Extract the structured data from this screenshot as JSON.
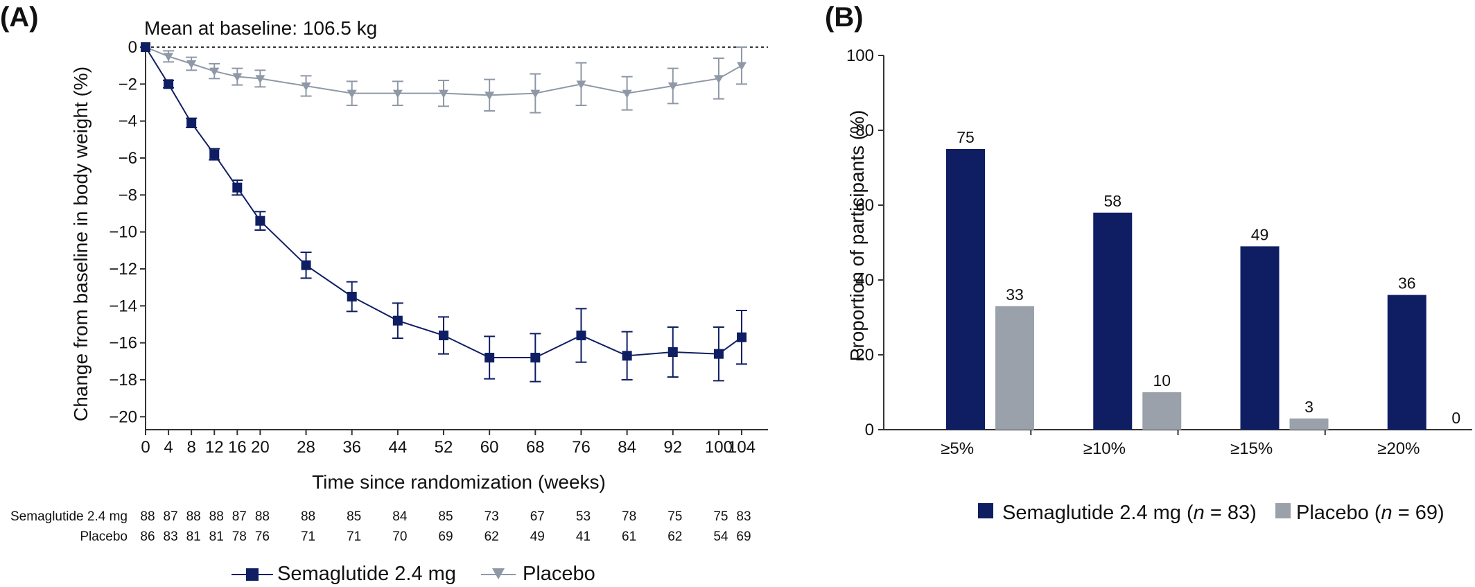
{
  "colors": {
    "semaglutide": "#0f1e63",
    "placebo": "#8f98a6",
    "placebo_bar": "#9aa1ab",
    "axis": "#333333"
  },
  "panel_a": {
    "label": "(A)",
    "annotation": "Mean at baseline: 106.5 kg",
    "legend": {
      "semaglutide": "Semaglutide 2.4 mg",
      "placebo": "Placebo"
    },
    "risk_table": {
      "rows": [
        {
          "label": "Semaglutide 2.4 mg",
          "values": [
            "88",
            "87",
            "88",
            "88",
            "87",
            "88",
            "88",
            "85",
            "84",
            "85",
            "73",
            "67",
            "53",
            "78",
            "75",
            "75",
            "83"
          ]
        },
        {
          "label": "Placebo",
          "values": [
            "86",
            "83",
            "81",
            "81",
            "78",
            "76",
            "71",
            "71",
            "70",
            "69",
            "62",
            "49",
            "41",
            "61",
            "62",
            "54",
            "69"
          ]
        }
      ]
    }
  },
  "panel_b": {
    "label": "(B)",
    "legend": {
      "semaglutide": "Semaglutide 2.4 mg (",
      "n_italic": "n",
      "semaglutide_n": " = 83)",
      "placebo": "Placebo (",
      "placebo_n": " = 69)"
    }
  },
  "chart_data": [
    {
      "type": "line",
      "title": "",
      "xlabel": "Time since randomization (weeks)",
      "ylabel": "Change from baseline in body weight (%)",
      "x": [
        0,
        4,
        8,
        12,
        16,
        20,
        28,
        36,
        44,
        52,
        60,
        68,
        76,
        84,
        92,
        100,
        104
      ],
      "xticks": [
        0,
        4,
        8,
        12,
        16,
        20,
        28,
        36,
        44,
        52,
        60,
        68,
        76,
        84,
        92,
        100,
        104
      ],
      "yticks": [
        0,
        -2,
        -4,
        -6,
        -8,
        -10,
        -12,
        -14,
        -16,
        -18,
        -20
      ],
      "xlim": [
        0,
        104
      ],
      "ylim": [
        -20.7,
        0.3
      ],
      "reference_line_y": 0,
      "series": [
        {
          "name": "Semaglutide 2.4 mg",
          "marker": "square",
          "values": [
            0,
            -2.0,
            -4.1,
            -5.8,
            -7.6,
            -9.4,
            -11.8,
            -13.5,
            -14.8,
            -15.6,
            -16.8,
            -16.8,
            -15.6,
            -16.7,
            -16.5,
            -16.6,
            -15.7
          ],
          "error": [
            0.15,
            0.2,
            0.25,
            0.3,
            0.4,
            0.5,
            0.7,
            0.8,
            0.95,
            1.0,
            1.15,
            1.3,
            1.45,
            1.3,
            1.35,
            1.45,
            1.45
          ]
        },
        {
          "name": "Placebo",
          "marker": "triangle-down",
          "values": [
            0,
            -0.5,
            -0.9,
            -1.3,
            -1.6,
            -1.7,
            -2.1,
            -2.5,
            -2.5,
            -2.5,
            -2.6,
            -2.5,
            -2.0,
            -2.5,
            -2.1,
            -1.7,
            -1.0
          ],
          "error": [
            0.15,
            0.3,
            0.35,
            0.4,
            0.45,
            0.45,
            0.55,
            0.65,
            0.65,
            0.7,
            0.85,
            1.05,
            1.15,
            0.9,
            0.95,
            1.1,
            1.0
          ]
        }
      ]
    },
    {
      "type": "bar",
      "title": "",
      "xlabel": "",
      "ylabel": "Proportion of participants (%)",
      "categories": [
        "≥5%",
        "≥10%",
        "≥15%",
        "≥20%"
      ],
      "yticks": [
        0,
        20,
        40,
        60,
        80,
        100
      ],
      "ylim": [
        0,
        100
      ],
      "series": [
        {
          "name": "Semaglutide 2.4 mg (n = 83)",
          "values": [
            75,
            58,
            49,
            36
          ],
          "labels": [
            "75",
            "58",
            "49",
            "36"
          ]
        },
        {
          "name": "Placebo (n = 69)",
          "values": [
            33,
            10,
            3,
            0
          ],
          "labels": [
            "33",
            "10",
            "3",
            "0"
          ]
        }
      ]
    }
  ]
}
